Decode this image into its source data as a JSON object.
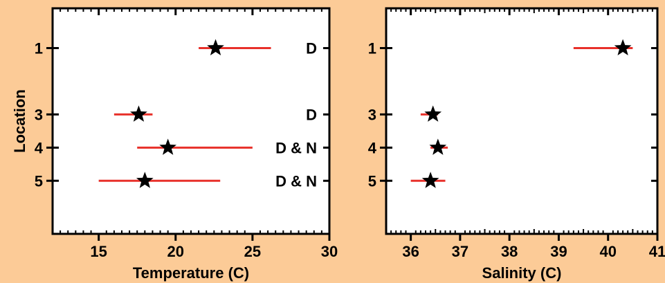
{
  "colors": {
    "background": "#FCCB97",
    "plot_area": "#FFFFFF",
    "axis": "#000000",
    "error_bar": "#E8302A",
    "marker": "#000000"
  },
  "chart_data": [
    {
      "type": "scatter",
      "marker": "star",
      "orientation": "horizontal error bars",
      "xlabel": "Temperature (C)",
      "ylabel": "Location",
      "xlim": [
        12,
        30
      ],
      "xticks": [
        "15",
        "20",
        "25",
        "30"
      ],
      "ylim": [
        6.6,
        -0.2
      ],
      "yticks": [
        "1",
        "3",
        "4",
        "5"
      ],
      "grid": false,
      "points": [
        {
          "location": "1",
          "value": 22.6,
          "low": 21.5,
          "high": 26.2,
          "label": "D"
        },
        {
          "location": "3",
          "value": 17.6,
          "low": 16.0,
          "high": 18.5,
          "label": "D"
        },
        {
          "location": "4",
          "value": 19.5,
          "low": 17.5,
          "high": 25.0,
          "label": "D & N"
        },
        {
          "location": "5",
          "value": 18.0,
          "low": 15.0,
          "high": 22.9,
          "label": "D & N"
        }
      ]
    },
    {
      "type": "scatter",
      "marker": "star",
      "orientation": "horizontal error bars",
      "xlabel": "Salinity (C)",
      "ylabel": "",
      "xlim": [
        35.5,
        41
      ],
      "xticks": [
        "36",
        "37",
        "38",
        "39",
        "40",
        "41"
      ],
      "ylim": [
        6.6,
        -0.2
      ],
      "yticks": [
        "1",
        "3",
        "4",
        "5"
      ],
      "grid": false,
      "points": [
        {
          "location": "1",
          "value": 40.3,
          "low": 39.3,
          "high": 40.5
        },
        {
          "location": "3",
          "value": 36.45,
          "low": 36.2,
          "high": 36.55
        },
        {
          "location": "4",
          "value": 36.55,
          "low": 36.4,
          "high": 36.75
        },
        {
          "location": "5",
          "value": 36.4,
          "low": 36.0,
          "high": 36.7
        }
      ]
    }
  ]
}
